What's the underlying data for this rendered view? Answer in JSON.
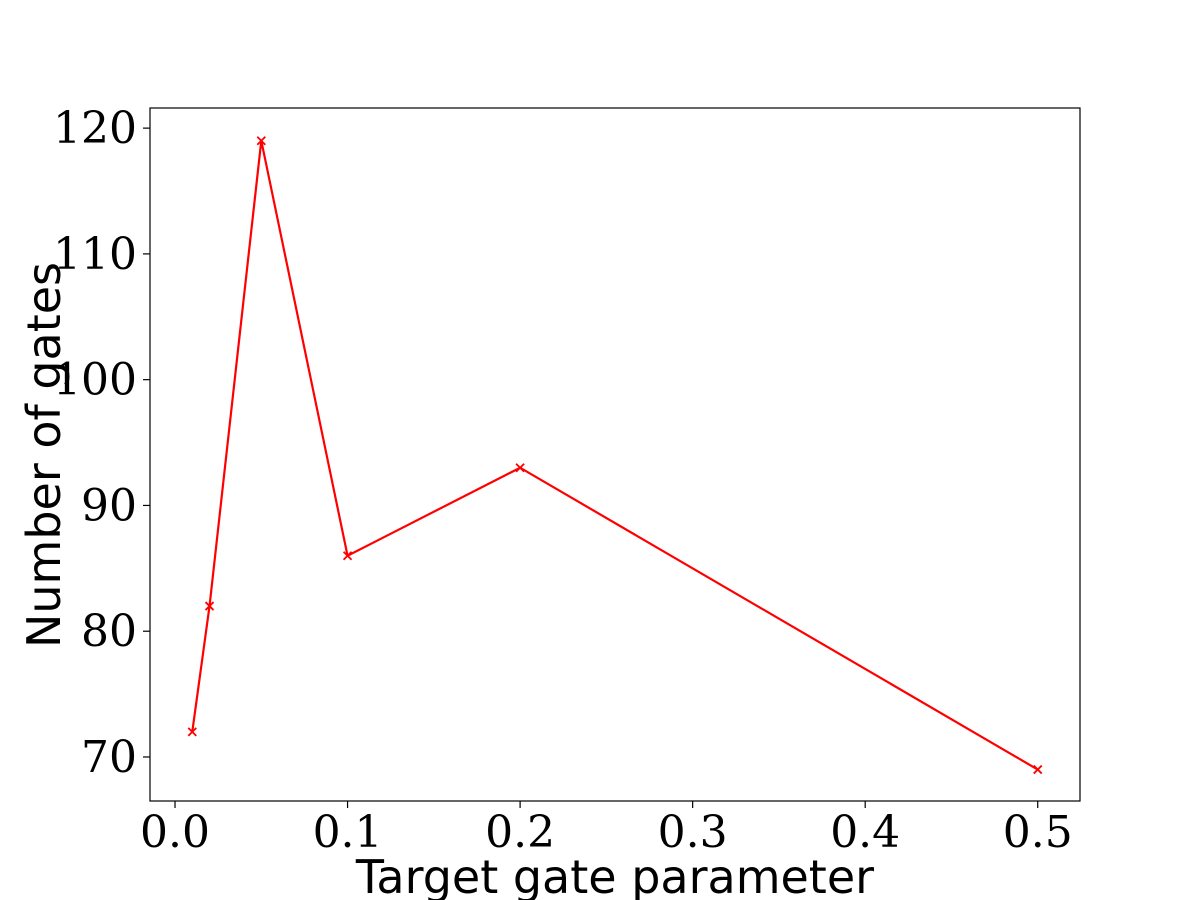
{
  "chart_data": {
    "type": "line",
    "title": "",
    "xlabel": "Target gate parameter",
    "ylabel": "Number of gates",
    "xlim": [
      -0.0145,
      0.5245
    ],
    "ylim": [
      66.5,
      121.6
    ],
    "x_ticks": [
      0.0,
      0.1,
      0.2,
      0.3,
      0.4,
      0.5
    ],
    "x_tick_labels": [
      "0.0",
      "0.1",
      "0.2",
      "0.3",
      "0.4",
      "0.5"
    ],
    "y_ticks": [
      70,
      80,
      90,
      100,
      110,
      120
    ],
    "y_tick_labels": [
      "70",
      "80",
      "90",
      "100",
      "110",
      "120"
    ],
    "grid": false,
    "legend": "none",
    "series": [
      {
        "color": "#ff0000",
        "marker": "x",
        "x": [
          0.01,
          0.02,
          0.05,
          0.1,
          0.2,
          0.5
        ],
        "y": [
          72,
          82,
          119,
          86,
          93,
          69
        ]
      }
    ]
  }
}
